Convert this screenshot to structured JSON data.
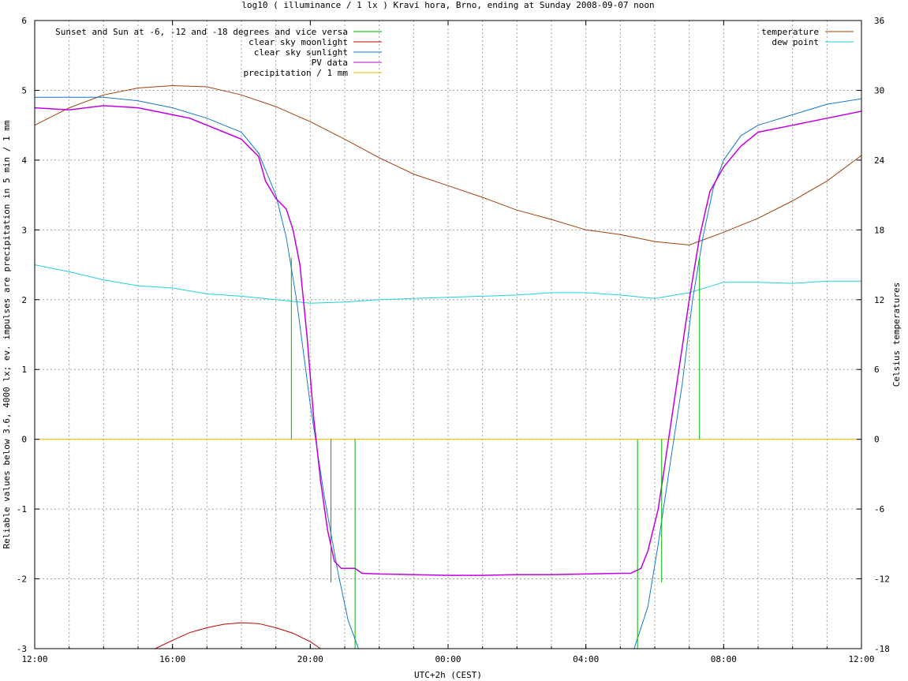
{
  "chart_data": {
    "type": "line",
    "title": "log10 ( illuminance / 1 lx ) Kravi hora, Brno, ending at Sunday 2008-09-07 noon",
    "xlabel": "UTC+2h (CEST)",
    "ylabel": "Reliable values below 3.6, 4000 lx; ev. impulses are precipitation in 5 min / 1 mm",
    "y2label": "Celsius temperatures",
    "xlim_hours": [
      12,
      36
    ],
    "ylim": [
      -3,
      6
    ],
    "y2lim": [
      -18,
      36
    ],
    "x_ticks": [
      "12:00",
      "16:00",
      "20:00",
      "00:00",
      "04:00",
      "08:00",
      "12:00"
    ],
    "y_ticks": [
      "-3",
      "-2",
      "-1",
      "0",
      "1",
      "2",
      "3",
      "4",
      "5",
      "6"
    ],
    "y2_ticks": [
      "-18",
      "-12",
      "-6",
      "0",
      "6",
      "12",
      "18",
      "24",
      "30",
      "36"
    ],
    "grid": true,
    "legend_left": [
      {
        "name": "Sunset and Sun at -6, -12 and -18 degrees and vice versa",
        "color": "#00b000"
      },
      {
        "name": "clear sky moonlight",
        "color": "#c00000"
      },
      {
        "name": "clear sky sunlight",
        "color": "#1878c8"
      },
      {
        "name": "PV data",
        "color": "#c000e0"
      },
      {
        "name": "precipitation / 1 mm",
        "color": "#e8c000"
      }
    ],
    "legend_right": [
      {
        "name": "temperature",
        "color": "#a0400a"
      },
      {
        "name": "dew point",
        "color": "#20d0d8"
      }
    ],
    "series": [
      {
        "key": "sunlight",
        "axis": "y1",
        "color": "#1878c8",
        "points": [
          [
            12,
            4.9
          ],
          [
            14,
            4.9
          ],
          [
            15,
            4.85
          ],
          [
            16,
            4.75
          ],
          [
            17,
            4.6
          ],
          [
            18,
            4.4
          ],
          [
            18.5,
            4.1
          ],
          [
            19,
            3.5
          ],
          [
            19.3,
            2.9
          ],
          [
            19.6,
            2.0
          ],
          [
            20,
            0.5
          ],
          [
            20.4,
            -0.8
          ],
          [
            20.8,
            -1.9
          ],
          [
            21.1,
            -2.6
          ],
          [
            21.4,
            -3.0
          ],
          [
            29.4,
            -3.0
          ],
          [
            29.8,
            -2.4
          ],
          [
            30.1,
            -1.5
          ],
          [
            30.4,
            -0.5
          ],
          [
            30.8,
            0.8
          ],
          [
            31.1,
            2.0
          ],
          [
            31.4,
            2.9
          ],
          [
            31.7,
            3.6
          ],
          [
            32,
            4.0
          ],
          [
            32.5,
            4.35
          ],
          [
            33,
            4.5
          ],
          [
            34,
            4.65
          ],
          [
            35,
            4.8
          ],
          [
            36,
            4.88
          ]
        ]
      },
      {
        "key": "moonlight",
        "axis": "y1",
        "color": "#c00000",
        "points": [
          [
            15.5,
            -3.0
          ],
          [
            16,
            -2.88
          ],
          [
            16.5,
            -2.77
          ],
          [
            17,
            -2.7
          ],
          [
            17.5,
            -2.65
          ],
          [
            18,
            -2.63
          ],
          [
            18.5,
            -2.64
          ],
          [
            19,
            -2.7
          ],
          [
            19.5,
            -2.78
          ],
          [
            20,
            -2.9
          ],
          [
            20.3,
            -3.0
          ]
        ]
      },
      {
        "key": "pv",
        "axis": "y1",
        "color": "#c000e0",
        "points": [
          [
            12,
            4.75
          ],
          [
            13,
            4.72
          ],
          [
            14,
            4.78
          ],
          [
            15,
            4.75
          ],
          [
            16,
            4.65
          ],
          [
            16.5,
            4.6
          ],
          [
            17,
            4.5
          ],
          [
            17.5,
            4.4
          ],
          [
            18,
            4.3
          ],
          [
            18.2,
            4.2
          ],
          [
            18.5,
            4.05
          ],
          [
            18.7,
            3.7
          ],
          [
            19,
            3.45
          ],
          [
            19.3,
            3.3
          ],
          [
            19.5,
            3.0
          ],
          [
            19.7,
            2.5
          ],
          [
            19.9,
            1.5
          ],
          [
            20.1,
            0.3
          ],
          [
            20.3,
            -0.6
          ],
          [
            20.5,
            -1.3
          ],
          [
            20.7,
            -1.75
          ],
          [
            20.9,
            -1.85
          ],
          [
            21.3,
            -1.85
          ],
          [
            21.5,
            -1.92
          ],
          [
            22,
            -1.93
          ],
          [
            23,
            -1.94
          ],
          [
            24,
            -1.95
          ],
          [
            25,
            -1.95
          ],
          [
            26,
            -1.94
          ],
          [
            27,
            -1.94
          ],
          [
            28,
            -1.93
          ],
          [
            29,
            -1.92
          ],
          [
            29.3,
            -1.92
          ],
          [
            29.6,
            -1.85
          ],
          [
            29.8,
            -1.6
          ],
          [
            30.1,
            -1.0
          ],
          [
            30.4,
            0
          ],
          [
            30.7,
            1.0
          ],
          [
            31,
            2.0
          ],
          [
            31.3,
            2.9
          ],
          [
            31.6,
            3.55
          ],
          [
            32,
            3.9
          ],
          [
            32.5,
            4.2
          ],
          [
            33,
            4.4
          ],
          [
            34,
            4.5
          ],
          [
            35,
            4.6
          ],
          [
            36,
            4.7
          ]
        ]
      },
      {
        "key": "temperature",
        "axis": "y2",
        "color": "#a0400a",
        "points": [
          [
            12,
            27
          ],
          [
            13,
            28.5
          ],
          [
            14,
            29.6
          ],
          [
            15,
            30.2
          ],
          [
            16,
            30.4
          ],
          [
            17,
            30.3
          ],
          [
            18,
            29.6
          ],
          [
            19,
            28.6
          ],
          [
            20,
            27.3
          ],
          [
            21,
            25.8
          ],
          [
            22,
            24.2
          ],
          [
            23,
            22.8
          ],
          [
            24,
            21.8
          ],
          [
            25,
            20.8
          ],
          [
            26,
            19.7
          ],
          [
            27,
            18.9
          ],
          [
            28,
            18.0
          ],
          [
            29,
            17.6
          ],
          [
            30,
            17.0
          ],
          [
            31,
            16.7
          ],
          [
            32,
            17.8
          ],
          [
            33,
            19.0
          ],
          [
            34,
            20.5
          ],
          [
            35,
            22.2
          ],
          [
            36,
            24.4
          ]
        ]
      },
      {
        "key": "dewpoint",
        "axis": "y2",
        "color": "#20d0d8",
        "points": [
          [
            12,
            15
          ],
          [
            13,
            14.4
          ],
          [
            14,
            13.7
          ],
          [
            15,
            13.2
          ],
          [
            16,
            13.0
          ],
          [
            17,
            12.5
          ],
          [
            18,
            12.3
          ],
          [
            19,
            12.0
          ],
          [
            20,
            11.7
          ],
          [
            21,
            11.8
          ],
          [
            22,
            12.0
          ],
          [
            23,
            12.1
          ],
          [
            24,
            12.2
          ],
          [
            25,
            12.3
          ],
          [
            26,
            12.4
          ],
          [
            27,
            12.6
          ],
          [
            28,
            12.6
          ],
          [
            29,
            12.4
          ],
          [
            30,
            12.1
          ],
          [
            31,
            12.6
          ],
          [
            32,
            13.5
          ],
          [
            33,
            13.5
          ],
          [
            34,
            13.4
          ],
          [
            35,
            13.6
          ],
          [
            36,
            13.6
          ]
        ]
      },
      {
        "key": "precipitation",
        "axis": "y1",
        "color": "#e8c000",
        "points": [
          [
            12,
            0
          ],
          [
            36,
            0
          ]
        ]
      }
    ],
    "twilight_impulses": [
      {
        "x": 19.45,
        "y": 2.6
      },
      {
        "x": 20.6,
        "y": -2.05
      },
      {
        "x": 21.3,
        "y": -3.0
      },
      {
        "x": 29.5,
        "y": -3.0
      },
      {
        "x": 30.2,
        "y": -2.05
      },
      {
        "x": 31.3,
        "y": 2.6
      }
    ]
  }
}
